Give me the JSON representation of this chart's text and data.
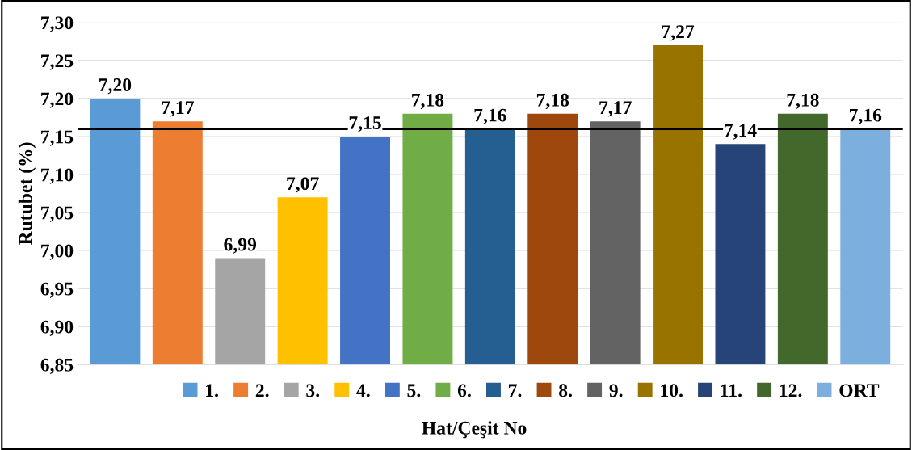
{
  "chart_data": {
    "type": "bar",
    "ylabel": "Rutubet (%)",
    "xlabel": "Hat/Çeşit No",
    "categories": [
      null,
      null,
      null,
      null,
      null,
      null,
      null,
      null,
      null,
      null,
      null,
      null,
      null
    ],
    "series": [
      {
        "name": "1.",
        "color": "#5b9bd5",
        "values": [
          7.2,
          null,
          null,
          null,
          null,
          null,
          null,
          null,
          null,
          null,
          null,
          null,
          null
        ],
        "value_labels": [
          "7,20",
          null,
          null,
          null,
          null,
          null,
          null,
          null,
          null,
          null,
          null,
          null,
          null
        ]
      },
      {
        "name": "2.",
        "color": "#ed7d31",
        "values": [
          null,
          7.17,
          null,
          null,
          null,
          null,
          null,
          null,
          null,
          null,
          null,
          null,
          null
        ],
        "value_labels": [
          null,
          "7,17",
          null,
          null,
          null,
          null,
          null,
          null,
          null,
          null,
          null,
          null,
          null
        ]
      },
      {
        "name": "3.",
        "color": "#a5a5a5",
        "values": [
          null,
          null,
          6.99,
          null,
          null,
          null,
          null,
          null,
          null,
          null,
          null,
          null,
          null
        ],
        "value_labels": [
          null,
          null,
          "6,99",
          null,
          null,
          null,
          null,
          null,
          null,
          null,
          null,
          null,
          null
        ]
      },
      {
        "name": "4.",
        "color": "#ffc000",
        "values": [
          null,
          null,
          null,
          7.07,
          null,
          null,
          null,
          null,
          null,
          null,
          null,
          null,
          null
        ],
        "value_labels": [
          null,
          null,
          null,
          "7,07",
          null,
          null,
          null,
          null,
          null,
          null,
          null,
          null,
          null
        ]
      },
      {
        "name": "5.",
        "color": "#4472c4",
        "values": [
          null,
          null,
          null,
          null,
          7.15,
          null,
          null,
          null,
          null,
          null,
          null,
          null,
          null
        ],
        "value_labels": [
          null,
          null,
          null,
          null,
          "7,15",
          null,
          null,
          null,
          null,
          null,
          null,
          null,
          null
        ]
      },
      {
        "name": "6.",
        "color": "#70ad47",
        "values": [
          null,
          null,
          null,
          null,
          null,
          7.18,
          null,
          null,
          null,
          null,
          null,
          null,
          null
        ],
        "value_labels": [
          null,
          null,
          null,
          null,
          null,
          "7,18",
          null,
          null,
          null,
          null,
          null,
          null,
          null
        ]
      },
      {
        "name": "7.",
        "color": "#255e91",
        "values": [
          null,
          null,
          null,
          null,
          null,
          null,
          7.16,
          null,
          null,
          null,
          null,
          null,
          null
        ],
        "value_labels": [
          null,
          null,
          null,
          null,
          null,
          null,
          "7,16",
          null,
          null,
          null,
          null,
          null,
          null
        ]
      },
      {
        "name": "8.",
        "color": "#9e480e",
        "values": [
          null,
          null,
          null,
          null,
          null,
          null,
          null,
          7.18,
          null,
          null,
          null,
          null,
          null
        ],
        "value_labels": [
          null,
          null,
          null,
          null,
          null,
          null,
          null,
          "7,18",
          null,
          null,
          null,
          null,
          null
        ]
      },
      {
        "name": "9.",
        "color": "#636363",
        "values": [
          null,
          null,
          null,
          null,
          null,
          null,
          null,
          null,
          7.17,
          null,
          null,
          null,
          null
        ],
        "value_labels": [
          null,
          null,
          null,
          null,
          null,
          null,
          null,
          null,
          "7,17",
          null,
          null,
          null,
          null
        ]
      },
      {
        "name": "10.",
        "color": "#997300",
        "values": [
          null,
          null,
          null,
          null,
          null,
          null,
          null,
          null,
          null,
          7.27,
          null,
          null,
          null
        ],
        "value_labels": [
          null,
          null,
          null,
          null,
          null,
          null,
          null,
          null,
          null,
          "7,27",
          null,
          null,
          null
        ]
      },
      {
        "name": "11.",
        "color": "#264478",
        "values": [
          null,
          null,
          null,
          null,
          null,
          null,
          null,
          null,
          null,
          null,
          7.14,
          null,
          null
        ],
        "value_labels": [
          null,
          null,
          null,
          null,
          null,
          null,
          null,
          null,
          null,
          null,
          "7,14",
          null,
          null
        ]
      },
      {
        "name": "12.",
        "color": "#43682b",
        "values": [
          null,
          null,
          null,
          null,
          null,
          null,
          null,
          null,
          null,
          null,
          null,
          7.18,
          null
        ],
        "value_labels": [
          null,
          null,
          null,
          null,
          null,
          null,
          null,
          null,
          null,
          null,
          null,
          "7,18",
          null
        ]
      },
      {
        "name": "ORT",
        "color": "#7cafdd",
        "values": [
          null,
          null,
          null,
          null,
          null,
          null,
          null,
          null,
          null,
          null,
          null,
          null,
          7.16
        ],
        "value_labels": [
          null,
          null,
          null,
          null,
          null,
          null,
          null,
          null,
          null,
          null,
          null,
          null,
          "7,16"
        ]
      }
    ],
    "ylim": [
      6.85,
      7.3
    ],
    "yticks": [
      {
        "value": 6.85,
        "label": "6,85"
      },
      {
        "value": 6.9,
        "label": "6,90"
      },
      {
        "value": 6.95,
        "label": "6,95"
      },
      {
        "value": 7.0,
        "label": "7,00"
      },
      {
        "value": 7.05,
        "label": "7,05"
      },
      {
        "value": 7.1,
        "label": "7,10"
      },
      {
        "value": 7.15,
        "label": "7,15"
      },
      {
        "value": 7.2,
        "label": "7,20"
      },
      {
        "value": 7.25,
        "label": "7,25"
      },
      {
        "value": 7.3,
        "label": "7,30"
      }
    ],
    "ref_lines": [
      {
        "axis": "y",
        "value": 7.16,
        "color": "#000000"
      }
    ],
    "grid": "y",
    "legend": "bottom",
    "tick_labels": "y"
  }
}
